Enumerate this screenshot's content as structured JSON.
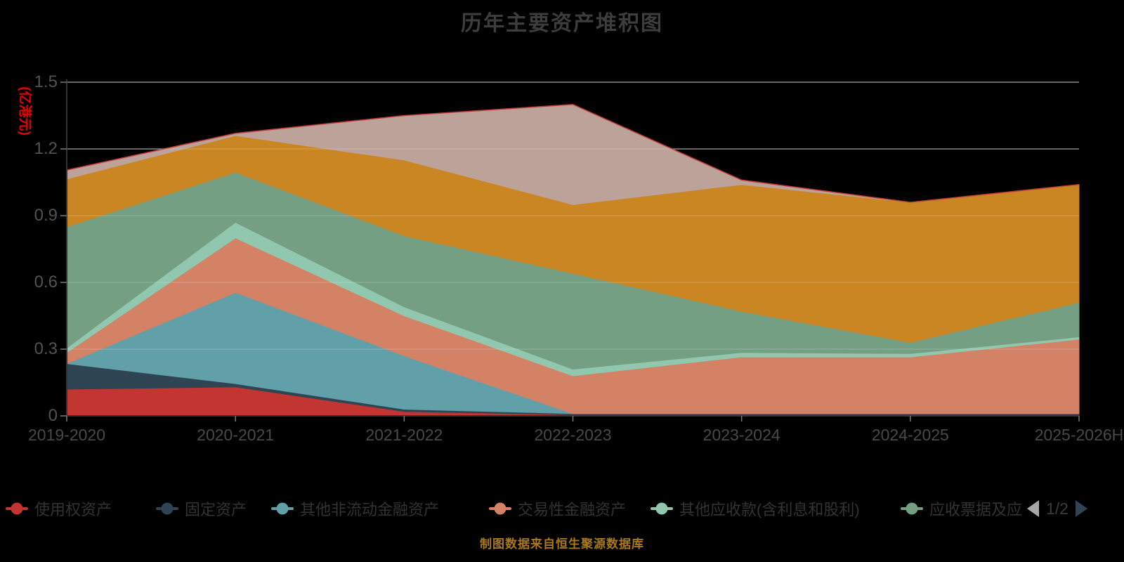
{
  "title": "历年主要资产堆积图",
  "y_axis": {
    "name": "(亿港元)",
    "name_color": "#e60000",
    "ticks": [
      "0",
      "0.3",
      "0.6",
      "0.9",
      "1.2",
      "1.5"
    ]
  },
  "source_note": "制图数据来自恒生聚源数据库",
  "legend": {
    "items": [
      {
        "label": "使用权资产",
        "color": "#c23531"
      },
      {
        "label": "固定资产",
        "color": "#2f4554"
      },
      {
        "label": "其他非流动金融资产",
        "color": "#61a0a8"
      },
      {
        "label": "交易性金融资产",
        "color": "#d48265"
      },
      {
        "label": "其他应收款(含利息和股利)",
        "color": "#91c7ae"
      },
      {
        "label": "应收票据及应",
        "color": "#749f83"
      }
    ],
    "pager": {
      "text": "1/2",
      "prev_icon": "left-triangle",
      "next_icon": "right-triangle",
      "prev_color": "#a8a8a8",
      "next_color": "#2f4554"
    }
  },
  "chart_data": {
    "type": "area",
    "stacked": true,
    "title": "历年主要资产堆积图",
    "ylabel": "(亿港元)",
    "ylim": [
      0,
      1.5
    ],
    "y_tick_step": 0.3,
    "grid": true,
    "legend_position": "bottom",
    "categories": [
      "2019-2020",
      "2020-2021",
      "2021-2022",
      "2022-2023",
      "2023-2024",
      "2024-2025",
      "2025-2026H"
    ],
    "series": [
      {
        "name": "使用权资产",
        "color": "#c23531",
        "values": [
          0.12,
          0.13,
          0.02,
          0.005,
          0.005,
          0.005,
          0.005
        ]
      },
      {
        "name": "固定资产",
        "color": "#2f4554",
        "values": [
          0.115,
          0.015,
          0.01,
          0.005,
          0.005,
          0.005,
          0.005
        ]
      },
      {
        "name": "其他非流动金融资产",
        "color": "#61a0a8",
        "values": [
          0,
          0.41,
          0.24,
          0,
          0,
          0,
          0
        ]
      },
      {
        "name": "交易性金融资产",
        "color": "#d48265",
        "values": [
          0.05,
          0.245,
          0.18,
          0.17,
          0.255,
          0.255,
          0.335
        ]
      },
      {
        "name": "其他应收款(含利息和股利)",
        "color": "#91c7ae",
        "values": [
          0.02,
          0.07,
          0.04,
          0.03,
          0.02,
          0.015,
          0.01
        ]
      },
      {
        "name": "应收票据及应",
        "color": "#749f83",
        "values": [
          0.545,
          0.225,
          0.32,
          0.43,
          0.185,
          0.05,
          0.155
        ]
      },
      {
        "name": "",
        "color": "#ca8622",
        "values": [
          0.215,
          0.165,
          0.34,
          0.31,
          0.57,
          0.63,
          0.53
        ]
      },
      {
        "name": "",
        "color": "#bda29a",
        "values": [
          0.04,
          0.01,
          0.2,
          0.45,
          0.02,
          0,
          0
        ]
      }
    ],
    "total_top_line_color": "#c23531"
  },
  "layout_colors": {
    "background": "#000000",
    "gridline": "#c2c2c2",
    "axis_line": "#333333",
    "axis_tick": "#7a7a7a",
    "title_text": "#3d3d3d",
    "axis_text": "#4d4d4d",
    "legend_text": "#333333"
  }
}
